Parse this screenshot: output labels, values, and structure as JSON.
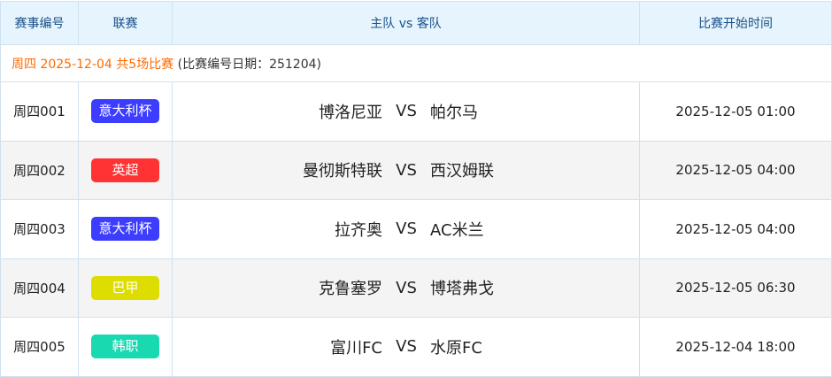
{
  "header": {
    "id": "赛事编号",
    "league": "联赛",
    "match": "主队 vs 客队",
    "time": "比赛开始时间"
  },
  "info": {
    "highlight": "周四 2025-12-04 共5场比赛",
    "note": "(比赛编号日期：251204)"
  },
  "vs_label": "VS",
  "rows": [
    {
      "id": "周四001",
      "league": "意大利杯",
      "color": "#3d3dff",
      "home": "博洛尼亚",
      "away": "帕尔马",
      "time": "2025-12-05 01:00"
    },
    {
      "id": "周四002",
      "league": "英超",
      "color": "#ff3333",
      "home": "曼彻斯特联",
      "away": "西汉姆联",
      "time": "2025-12-05 04:00"
    },
    {
      "id": "周四003",
      "league": "意大利杯",
      "color": "#3d3dff",
      "home": "拉齐奥",
      "away": "AC米兰",
      "time": "2025-12-05 04:00"
    },
    {
      "id": "周四004",
      "league": "巴甲",
      "color": "#dddd00",
      "home": "克鲁塞罗",
      "away": "博塔弗戈",
      "time": "2025-12-05 06:30"
    },
    {
      "id": "周四005",
      "league": "韩职",
      "color": "#19d9b0",
      "home": "富川FC",
      "away": "水原FC",
      "time": "2025-12-04 18:00"
    }
  ]
}
